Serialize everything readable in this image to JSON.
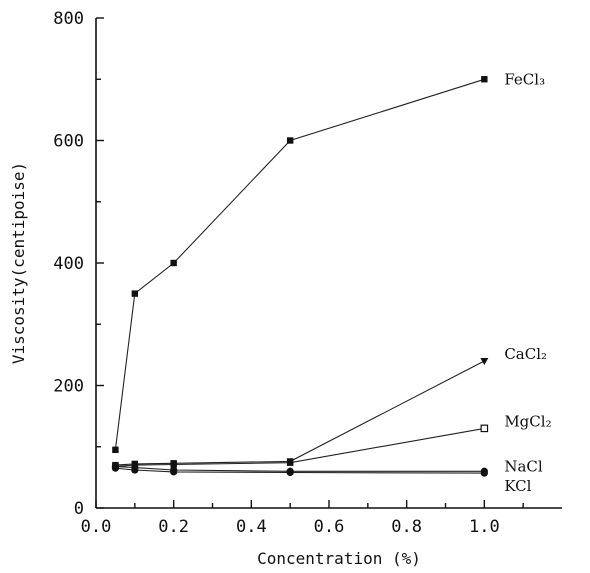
{
  "chart_data": {
    "type": "line",
    "xlabel": "Concentration (%)",
    "ylabel": "Viscosity(centipoise)",
    "xlim": [
      0,
      1.2
    ],
    "ylim": [
      0,
      800
    ],
    "x_ticks": [
      "0.0",
      "0.2",
      "0.4",
      "0.6",
      "0.8",
      "1.0"
    ],
    "x_tick_values": [
      0,
      0.2,
      0.4,
      0.6,
      0.8,
      1.0
    ],
    "y_ticks": [
      "0",
      "200",
      "400",
      "600",
      "800"
    ],
    "y_tick_values": [
      0,
      200,
      400,
      600,
      800
    ],
    "grid": false,
    "legend": "inline labels at line ends",
    "series": [
      {
        "name": "FeCl₃",
        "marker": "filled-square",
        "x": [
          0.05,
          0.1,
          0.2,
          0.5,
          1.0
        ],
        "y": [
          95,
          350,
          400,
          600,
          700
        ]
      },
      {
        "name": "CaCl₂",
        "marker": "filled-triangle-down",
        "x": [
          0.05,
          0.1,
          0.2,
          0.5,
          1.0
        ],
        "y": [
          70,
          72,
          73,
          76,
          240
        ]
      },
      {
        "name": "MgCl₂",
        "marker": "open-square",
        "x": [
          0.05,
          0.1,
          0.2,
          0.5,
          1.0
        ],
        "y": [
          68,
          70,
          71,
          74,
          130
        ]
      },
      {
        "name": "NaCl",
        "marker": "filled-circle",
        "x": [
          0.05,
          0.1,
          0.2,
          0.5,
          1.0
        ],
        "y": [
          68,
          66,
          62,
          60,
          60
        ]
      },
      {
        "name": "KCl",
        "marker": "filled-circle",
        "x": [
          0.05,
          0.1,
          0.2,
          0.5,
          1.0
        ],
        "y": [
          65,
          62,
          59,
          58,
          57
        ]
      }
    ]
  }
}
